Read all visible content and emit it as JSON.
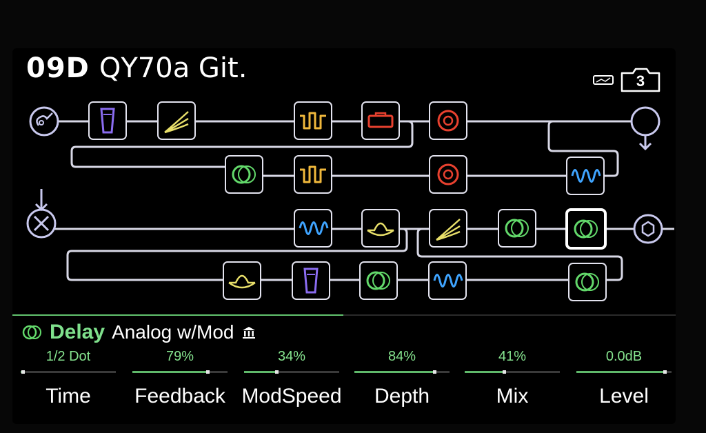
{
  "preset": {
    "number": "09D",
    "name": "QY70a Git."
  },
  "snapshot": "3",
  "signal_flow": {
    "block_icons": [
      "guitar-input-icon",
      "volume-pedal-icon",
      "eq-icon",
      "distortion-icon",
      "amp-icon",
      "cab-icon",
      "output-loop-icon",
      "delay-icon",
      "distortion-icon",
      "cab-icon",
      "modulation-icon",
      "input-merge-icon",
      "modulation-icon",
      "filter-icon",
      "eq-icon",
      "delay-icon",
      "delay-icon",
      "output-icon",
      "filter-icon",
      "volume-pedal-icon",
      "delay-icon",
      "modulation-icon",
      "delay-icon"
    ]
  },
  "selected_block": {
    "category": "Delay",
    "model": "Analog w/Mod",
    "legacy_icon": "legacy-bank-icon"
  },
  "parameters": [
    {
      "name": "Time",
      "value": "1/2 Dot",
      "level": 0.02
    },
    {
      "name": "Feedback",
      "value": "79%",
      "level": 0.79
    },
    {
      "name": "ModSpeed",
      "value": "34%",
      "level": 0.34
    },
    {
      "name": "Depth",
      "value": "84%",
      "level": 0.84
    },
    {
      "name": "Mix",
      "value": "41%",
      "level": 0.41
    },
    {
      "name": "Level",
      "value": "0.0dB",
      "level": 0.93
    }
  ],
  "colors": {
    "delay": "#63d96b",
    "eq": "#e8df6a",
    "distortion": "#f0b83c",
    "amp": "#e8412f",
    "modulation": "#3fa4ff",
    "volume": "#8a6cf0",
    "wire": "#d8d8e6",
    "io": "#c9c9ee"
  }
}
